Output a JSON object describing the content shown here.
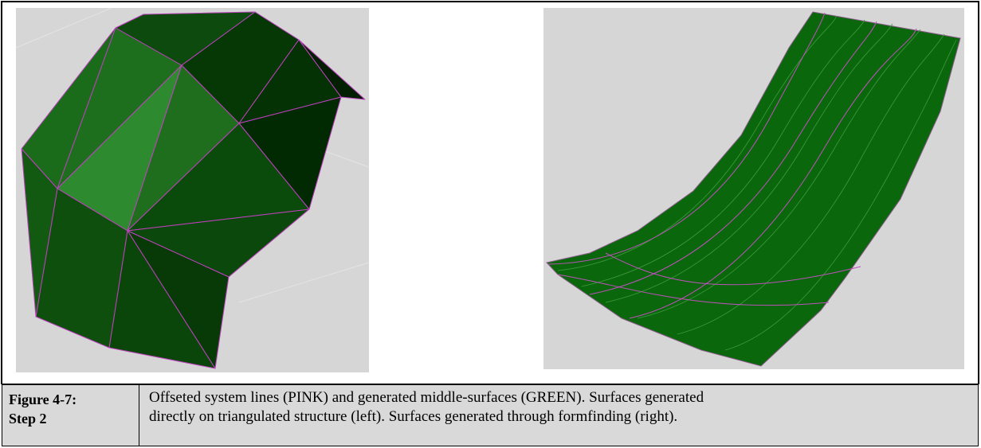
{
  "caption": {
    "label": [
      "Figure 4-7:",
      "Step 2"
    ],
    "text": [
      "Offseted system lines (PINK) and generated middle-surfaces (GREEN). Surfaces generated",
      "directly on triangulated structure (left). Surfaces generated through formfinding (right)."
    ]
  }
}
